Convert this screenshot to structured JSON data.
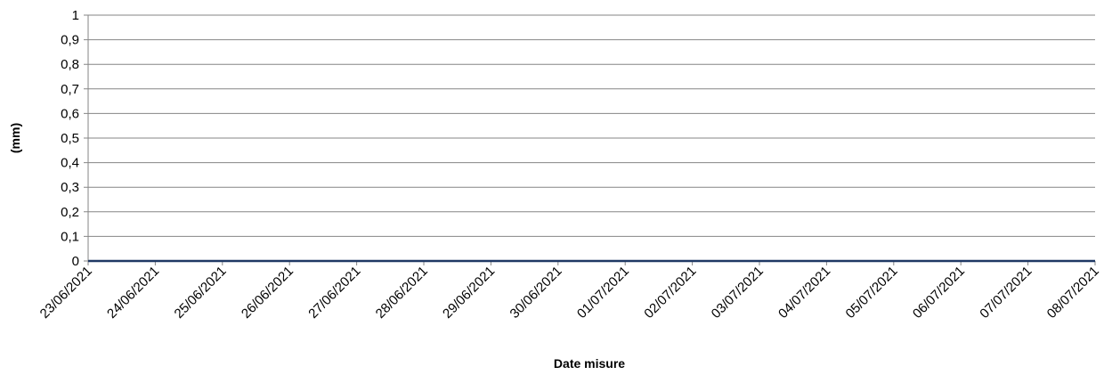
{
  "chart_data": {
    "type": "line",
    "title": "",
    "xlabel": "Date misure",
    "ylabel": "(mm)",
    "ylim": [
      0,
      1
    ],
    "y_ticks": [
      "0",
      "0,1",
      "0,2",
      "0,3",
      "0,4",
      "0,5",
      "0,6",
      "0,7",
      "0,8",
      "0,9",
      "1"
    ],
    "categories": [
      "23/06/2021",
      "24/06/2021",
      "25/06/2021",
      "26/06/2021",
      "27/06/2021",
      "28/06/2021",
      "29/06/2021",
      "30/06/2021",
      "01/07/2021",
      "02/07/2021",
      "03/07/2021",
      "04/07/2021",
      "05/07/2021",
      "06/07/2021",
      "07/07/2021",
      "08/07/2021"
    ],
    "series": [
      {
        "values": [
          0,
          0,
          0,
          0,
          0,
          0,
          0,
          0,
          0,
          0,
          0,
          0,
          0,
          0,
          0,
          0
        ],
        "color": "#1f3864"
      }
    ],
    "grid": true,
    "gridline_color": "#868686",
    "legend": "none"
  }
}
